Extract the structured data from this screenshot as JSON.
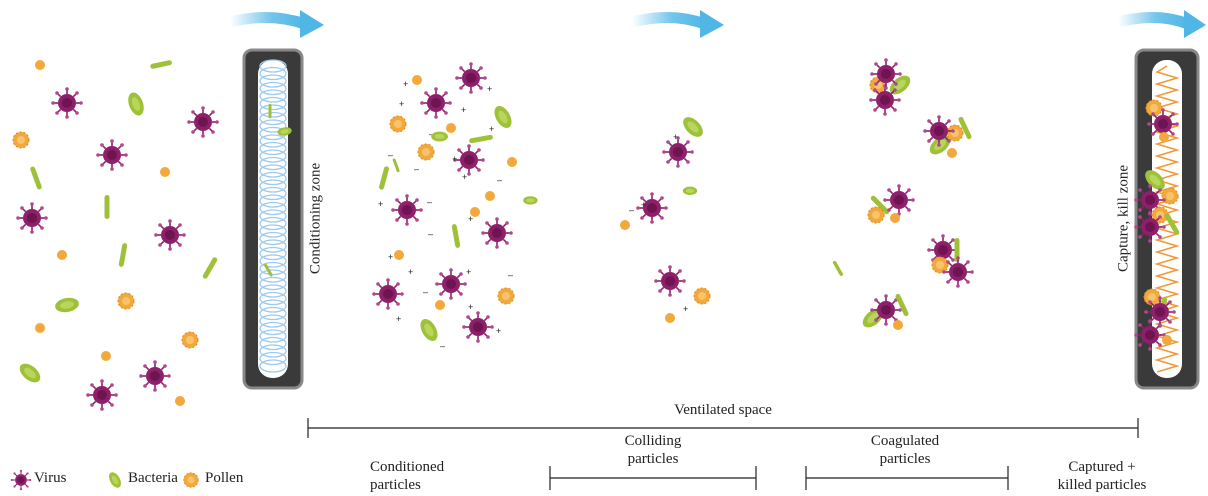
{
  "zones": {
    "conditioning": "Conditioning zone",
    "capture": "Capture, kill zone"
  },
  "spans": {
    "ventilated": "Ventilated space",
    "colliding_line1": "Colliding",
    "colliding_line2": "particles",
    "coagulated_line1": "Coagulated",
    "coagulated_line2": "particles"
  },
  "stages": {
    "conditioned_line1": "Conditioned",
    "conditioned_line2": "particles",
    "captured_line1": "Captured +",
    "captured_line2": "killed particles"
  },
  "legend": {
    "virus": "Virus",
    "bacteria": "Bacteria",
    "pollen": "Pollen"
  },
  "colors": {
    "virus": "#8e1f6a",
    "bacteria": "#9fc13a",
    "pollen": "#f2a83b",
    "airflow": "#4fb6e6",
    "filter_frame": "#3a3a3a",
    "coil": "#9cc9ee"
  }
}
